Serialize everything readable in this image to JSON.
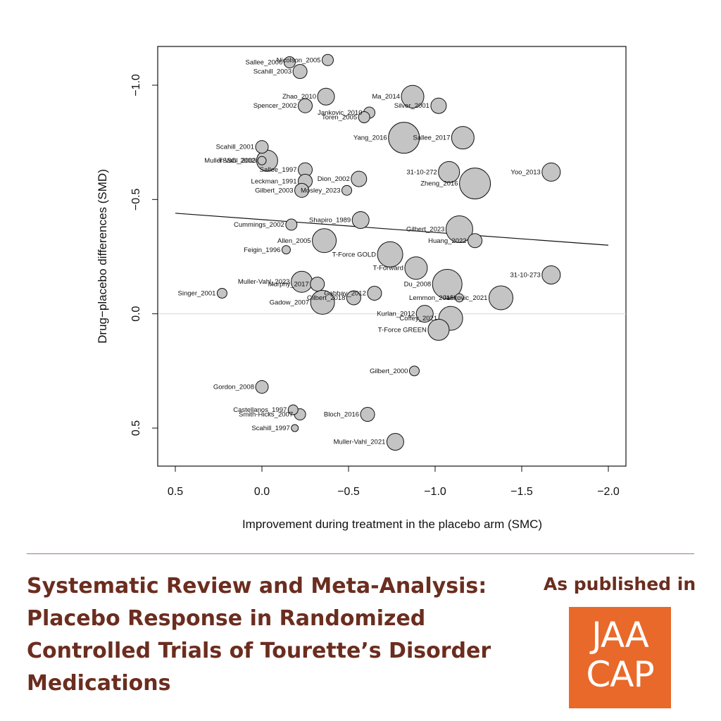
{
  "chart_data": {
    "type": "scatter",
    "xlabel": "Improvement during treatment in the placebo arm (SMC)",
    "ylabel": "Drug−placebo differences (SMD)",
    "xlim": [
      0.5,
      -2.0
    ],
    "ylim": [
      -1.0,
      0.5
    ],
    "x_ticks": [
      0.5,
      0.0,
      -0.5,
      -1.0,
      -1.5,
      -2.0
    ],
    "x_tick_labels": [
      "0.5",
      "0.0",
      "−0.5",
      "−1.0",
      "−1.5",
      "−2.0"
    ],
    "y_ticks": [
      -1.0,
      -0.5,
      0.0,
      0.5
    ],
    "y_tick_labels": [
      "−1.0",
      "−0.5",
      "0.0",
      "0.5"
    ],
    "reference_line_y": 0.0,
    "regression_line": {
      "x": [
        0.5,
        -2.0
      ],
      "y": [
        -0.44,
        -0.3
      ]
    },
    "points": [
      {
        "label": "Sallee_2000",
        "x": -0.16,
        "y": -1.1,
        "size": 8
      },
      {
        "label": "Nicolson_2005",
        "x": -0.38,
        "y": -1.11,
        "size": 8
      },
      {
        "label": "Scahill_2003",
        "x": -0.22,
        "y": -1.06,
        "size": 10
      },
      {
        "label": "Zhao_2010",
        "x": -0.37,
        "y": -0.95,
        "size": 12
      },
      {
        "label": "Ma_2014",
        "x": -0.87,
        "y": -0.95,
        "size": 16
      },
      {
        "label": "Spencer_2002",
        "x": -0.25,
        "y": -0.91,
        "size": 10
      },
      {
        "label": "Silver_2001",
        "x": -1.02,
        "y": -0.91,
        "size": 11
      },
      {
        "label": "Jankovic_2010",
        "x": -0.62,
        "y": -0.88,
        "size": 8
      },
      {
        "label": "Toren_2005",
        "x": -0.59,
        "y": -0.86,
        "size": 8
      },
      {
        "label": "Yang_2016",
        "x": -0.82,
        "y": -0.77,
        "size": 22
      },
      {
        "label": "Sallee_2017",
        "x": -1.16,
        "y": -0.77,
        "size": 16
      },
      {
        "label": "Scahill_2001",
        "x": 0.0,
        "y": -0.73,
        "size": 9
      },
      {
        "label": "Muller-Vahl_2003",
        "x": 0.0,
        "y": -0.67,
        "size": 6
      },
      {
        "label": "TSSG_2002",
        "x": -0.03,
        "y": -0.67,
        "size": 15
      },
      {
        "label": "Sallee_1997",
        "x": -0.25,
        "y": -0.63,
        "size": 10
      },
      {
        "label": "31-10-272",
        "x": -1.08,
        "y": -0.62,
        "size": 15
      },
      {
        "label": "Yoo_2013",
        "x": -1.67,
        "y": -0.62,
        "size": 13
      },
      {
        "label": "Dion_2002",
        "x": -0.56,
        "y": -0.59,
        "size": 11
      },
      {
        "label": "Leckman_1991",
        "x": -0.25,
        "y": -0.58,
        "size": 10
      },
      {
        "label": "Zheng_2016",
        "x": -1.23,
        "y": -0.57,
        "size": 22
      },
      {
        "label": "Gilbert_2003",
        "x": -0.23,
        "y": -0.54,
        "size": 10
      },
      {
        "label": "Mosley_2023",
        "x": -0.49,
        "y": -0.54,
        "size": 7
      },
      {
        "label": "Shapiro_1989",
        "x": -0.57,
        "y": -0.41,
        "size": 12
      },
      {
        "label": "Cummings_2002",
        "x": -0.17,
        "y": -0.39,
        "size": 8
      },
      {
        "label": "Gilbert_2023",
        "x": -1.14,
        "y": -0.37,
        "size": 19
      },
      {
        "label": "Huang_2022",
        "x": -1.23,
        "y": -0.32,
        "size": 10
      },
      {
        "label": "Allen_2005",
        "x": -0.36,
        "y": -0.32,
        "size": 17
      },
      {
        "label": "Feigin_1996",
        "x": -0.14,
        "y": -0.28,
        "size": 6
      },
      {
        "label": "T-Force GOLD",
        "x": -0.74,
        "y": -0.26,
        "size": 18
      },
      {
        "label": "T-Forward",
        "x": -0.89,
        "y": -0.2,
        "size": 16
      },
      {
        "label": "31-10-273",
        "x": -1.67,
        "y": -0.17,
        "size": 13
      },
      {
        "label": "Muller-Vahl_2023",
        "x": -0.23,
        "y": -0.14,
        "size": 15
      },
      {
        "label": "Murphy_2017",
        "x": -0.32,
        "y": -0.13,
        "size": 10
      },
      {
        "label": "Du_2008",
        "x": -1.07,
        "y": -0.13,
        "size": 21
      },
      {
        "label": "Singer_2001",
        "x": 0.23,
        "y": -0.09,
        "size": 7
      },
      {
        "label": "Gabbay_2012",
        "x": -0.65,
        "y": -0.09,
        "size": 10
      },
      {
        "label": "Lemmon_2015",
        "x": -1.14,
        "y": -0.07,
        "size": 6
      },
      {
        "label": "Jankovic_2021",
        "x": -1.38,
        "y": -0.07,
        "size": 17
      },
      {
        "label": "Gilbert_2018",
        "x": -0.53,
        "y": -0.07,
        "size": 10
      },
      {
        "label": "Gadow_2007",
        "x": -0.35,
        "y": -0.05,
        "size": 17
      },
      {
        "label": "Kurlan_2012",
        "x": -0.94,
        "y": 0.0,
        "size": 12
      },
      {
        "label": "Coffey_2021",
        "x": -1.09,
        "y": 0.02,
        "size": 17
      },
      {
        "label": "T-Force GREEN",
        "x": -1.02,
        "y": 0.07,
        "size": 15
      },
      {
        "label": "Gilbert_2000",
        "x": -0.88,
        "y": 0.25,
        "size": 7
      },
      {
        "label": "Gordon_2008",
        "x": 0.0,
        "y": 0.32,
        "size": 9
      },
      {
        "label": "Castellanos_1997",
        "x": -0.18,
        "y": 0.42,
        "size": 7
      },
      {
        "label": "Smith-Hicks_2007",
        "x": -0.22,
        "y": 0.44,
        "size": 8
      },
      {
        "label": "Bloch_2016",
        "x": -0.61,
        "y": 0.44,
        "size": 10
      },
      {
        "label": "Scahill_1997",
        "x": -0.19,
        "y": 0.5,
        "size": 5
      },
      {
        "label": "Muller-Vahl_2021",
        "x": -0.77,
        "y": 0.56,
        "size": 12
      }
    ]
  },
  "footer": {
    "title": "Systematic Review and Meta-Analysis: Placebo Response in Randomized Controlled Trials of Tourette’s Disorder Medications",
    "published_label": "As published in",
    "logo_line1": "JAA",
    "logo_line2": "CAP",
    "accent_color": "#6b2d1f",
    "logo_color": "#e8692a"
  }
}
